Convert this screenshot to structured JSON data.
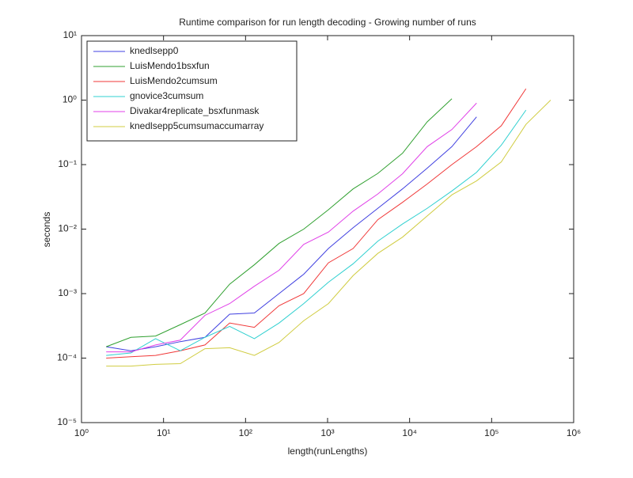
{
  "chart_data": {
    "type": "line",
    "title": "Runtime comparison for run length decoding - Growing number of runs",
    "x_label": "length(runLengths)",
    "y_label": "seconds",
    "x_scale": "log",
    "y_scale": "log",
    "legend": "upper left",
    "x": [
      2,
      4,
      8,
      16,
      32,
      64,
      128,
      256,
      512,
      1024,
      2048,
      4096,
      8192,
      16384,
      32768,
      65536,
      131072,
      262144,
      524288
    ],
    "xlim": [
      1,
      1000000
    ],
    "xticks": [
      {
        "value": 1,
        "label": "10⁰"
      },
      {
        "value": 10,
        "label": "10¹"
      },
      {
        "value": 100,
        "label": "10²"
      },
      {
        "value": 1000,
        "label": "10³"
      },
      {
        "value": 10000,
        "label": "10⁴"
      },
      {
        "value": 100000,
        "label": "10⁵"
      },
      {
        "value": 1000000,
        "label": "10⁶"
      }
    ],
    "ylim": [
      1e-05,
      10
    ],
    "yticks": [
      {
        "value": 1e-05,
        "label": "10⁻⁵"
      },
      {
        "value": 0.0001,
        "label": "10⁻⁴"
      },
      {
        "value": 0.001,
        "label": "10⁻³"
      },
      {
        "value": 0.01,
        "label": "10⁻²"
      },
      {
        "value": 0.1,
        "label": "10⁻¹"
      },
      {
        "value": 1,
        "label": "10⁰"
      },
      {
        "value": 10,
        "label": "10¹"
      }
    ],
    "series": [
      {
        "name": "knedlsepp0",
        "color": "#4040e0",
        "values": [
          0.00015,
          0.00013,
          0.00015,
          0.00018,
          0.00021,
          0.00048,
          0.0005,
          0.001,
          0.002,
          0.005,
          0.0105,
          0.021,
          0.042,
          0.088,
          0.19,
          0.55,
          null,
          null,
          null
        ]
      },
      {
        "name": "LuisMendo1bsxfun",
        "color": "#30a030",
        "values": [
          0.00015,
          0.00021,
          0.00022,
          0.00033,
          0.0005,
          0.0014,
          0.0028,
          0.006,
          0.01,
          0.02,
          0.042,
          0.073,
          0.15,
          0.46,
          1.05,
          null,
          null,
          null,
          null
        ]
      },
      {
        "name": "LuisMendo2cumsum",
        "color": "#f03838",
        "values": [
          0.0001,
          0.000105,
          0.00011,
          0.00013,
          0.00016,
          0.00035,
          0.0003,
          0.00065,
          0.001,
          0.003,
          0.005,
          0.014,
          0.026,
          0.05,
          0.1,
          0.19,
          0.4,
          1.5,
          null
        ]
      },
      {
        "name": "gnovice3cumsum",
        "color": "#30d0d0",
        "values": [
          0.00011,
          0.00012,
          0.0002,
          0.00013,
          0.00021,
          0.00031,
          0.0002,
          0.00035,
          0.0007,
          0.0015,
          0.0029,
          0.0065,
          0.012,
          0.021,
          0.039,
          0.076,
          0.2,
          0.7,
          null
        ]
      },
      {
        "name": "Divakar4replicate_bsxfunmask",
        "color": "#e040e8",
        "values": [
          0.000125,
          0.000125,
          0.00016,
          0.00019,
          0.00046,
          0.0007,
          0.0013,
          0.0023,
          0.0058,
          0.009,
          0.019,
          0.035,
          0.072,
          0.19,
          0.35,
          0.9,
          null,
          null,
          null
        ]
      },
      {
        "name": "knedlsepp5cumsumaccumarray",
        "color": "#d0cc40",
        "values": [
          7.5e-05,
          7.5e-05,
          8e-05,
          8.2e-05,
          0.00014,
          0.000145,
          0.00011,
          0.000175,
          0.00038,
          0.0007,
          0.0019,
          0.0042,
          0.0075,
          0.016,
          0.034,
          0.056,
          0.11,
          0.42,
          1.0
        ]
      }
    ]
  }
}
